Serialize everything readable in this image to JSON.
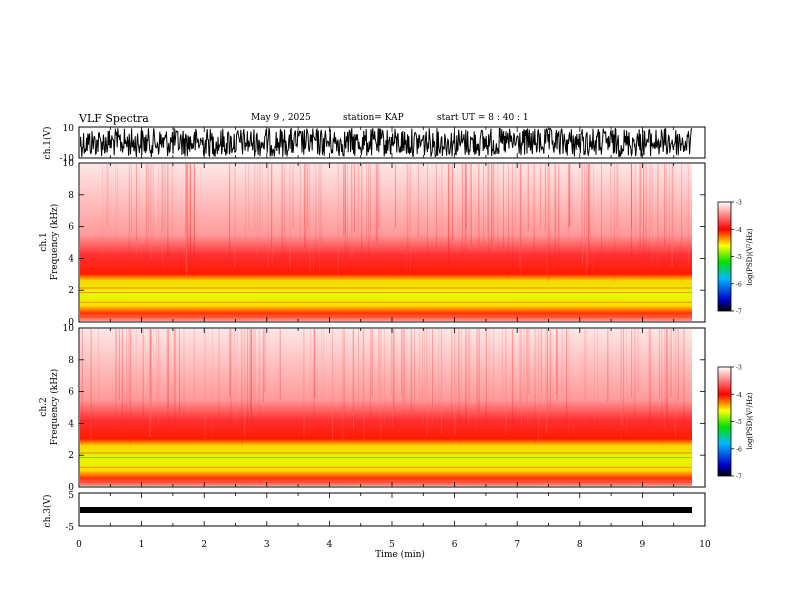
{
  "header": {
    "title": "VLF Spectra",
    "date": "May 9  , 2025",
    "station": "station= KAP",
    "start": "start  UT  =   8  : 40 : 1"
  },
  "chart_data": [
    {
      "type": "line",
      "panel": "ch1-waveform",
      "ylabel": "ch.1(V)",
      "ylim": [
        -10,
        10
      ],
      "ytick_labels": [
        "10",
        "-10"
      ],
      "description_color": "#000000"
    },
    {
      "type": "heatmap",
      "panel": "ch1-spectrogram",
      "ylabel": "ch.1\nFrequency  (kHz)",
      "ylabel_lines": [
        "ch.1",
        "Frequency  (kHz)"
      ],
      "ylim": [
        0,
        10
      ],
      "ytick_labels": [
        "0",
        "2",
        "4",
        "6",
        "8",
        "10"
      ],
      "colorbar": {
        "label": "log(PSD)(V²/Hz)",
        "range": [
          -7,
          -3
        ],
        "tick_labels": [
          "-3",
          "-4",
          "-5",
          "-6",
          "-7"
        ],
        "colors": [
          "#000000",
          "#0000cc",
          "#00b8ff",
          "#00e000",
          "#ffff00",
          "#ff0000",
          "#ffffff"
        ]
      }
    },
    {
      "type": "heatmap",
      "panel": "ch2-spectrogram",
      "ylabel": "ch.2\nFrequency  (kHz)",
      "ylabel_lines": [
        "ch.2",
        "Frequency  (kHz)"
      ],
      "ylim": [
        0,
        10
      ],
      "ytick_labels": [
        "0",
        "2",
        "4",
        "6",
        "8",
        "10"
      ],
      "colorbar": {
        "label": "log(PSD)(V²/Hz)",
        "range": [
          -7,
          -3
        ],
        "tick_labels": [
          "-3",
          "-4",
          "-5",
          "-6",
          "-7"
        ],
        "colors": [
          "#000000",
          "#0000cc",
          "#00b8ff",
          "#00e000",
          "#ffff00",
          "#ff0000",
          "#ffffff"
        ]
      }
    },
    {
      "type": "line",
      "panel": "ch3-waveform",
      "ylabel": "ch.3(V)",
      "ylim": [
        -5,
        5
      ],
      "ytick_labels": [
        "5",
        "-5"
      ]
    }
  ],
  "x_axis": {
    "label": "Time  (min)",
    "range": [
      0,
      10
    ],
    "tick_labels": [
      "0",
      "1",
      "2",
      "3",
      "4",
      "5",
      "6",
      "7",
      "8",
      "9",
      "10"
    ]
  }
}
